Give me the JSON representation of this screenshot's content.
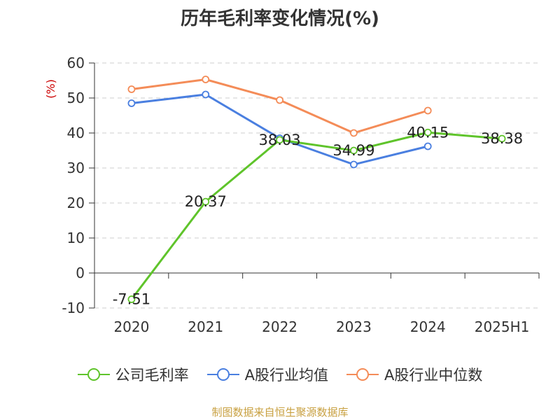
{
  "title": "历年毛利率变化情况(%)",
  "source_note": "制图数据来自恒生聚源数据库",
  "chart_data": {
    "type": "line",
    "ylabel": "(%)",
    "ylim": [
      -10,
      60
    ],
    "yticks": [
      -10,
      0,
      10,
      20,
      30,
      40,
      50,
      60
    ],
    "grid": true,
    "legend_position": "bottom",
    "categories": [
      "2020",
      "2021",
      "2022",
      "2023",
      "2024",
      "2025H1"
    ],
    "series": [
      {
        "name": "公司毛利率",
        "color": "#5fc42b",
        "values": [
          -7.51,
          20.37,
          38.03,
          34.99,
          40.15,
          38.38
        ],
        "labels": [
          "-7.51",
          "20.37",
          "38.03",
          "34.99",
          "40.15",
          "38.38"
        ]
      },
      {
        "name": "A股行业均值",
        "color": "#4a7fe0",
        "values": [
          48.5,
          51.0,
          38.5,
          31.0,
          36.2,
          null
        ]
      },
      {
        "name": "A股行业中位数",
        "color": "#f48c58",
        "values": [
          52.5,
          55.3,
          49.4,
          40.0,
          46.4,
          null
        ]
      }
    ]
  }
}
